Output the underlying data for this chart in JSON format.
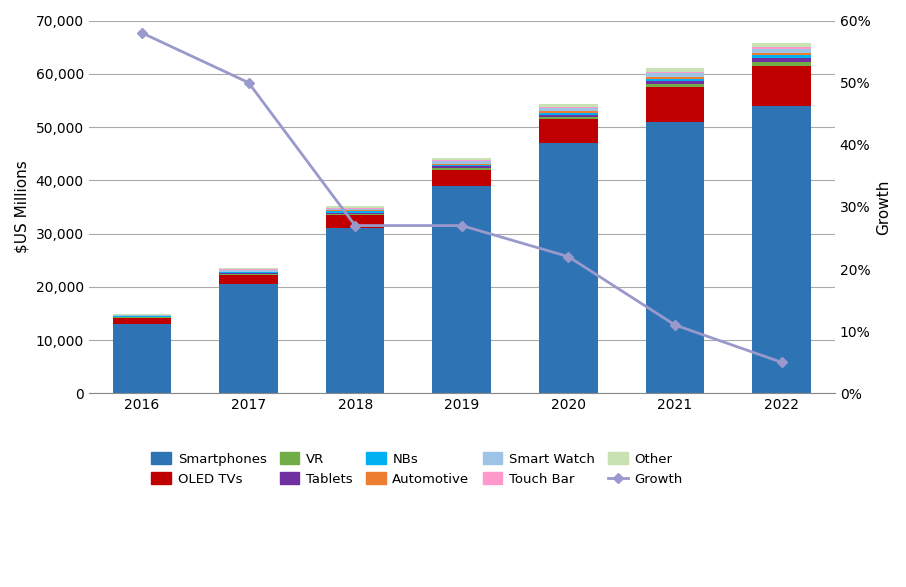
{
  "years": [
    "2016",
    "2017",
    "2018",
    "2019",
    "2020",
    "2021",
    "2022"
  ],
  "smartphones": [
    13000,
    20500,
    31000,
    39000,
    47000,
    51000,
    54000
  ],
  "oled_tvs": [
    1200,
    1800,
    2500,
    3000,
    4500,
    6500,
    7500
  ],
  "vr": [
    80,
    150,
    250,
    350,
    450,
    600,
    750
  ],
  "tablets": [
    80,
    120,
    180,
    250,
    350,
    500,
    650
  ],
  "nbs": [
    100,
    200,
    250,
    300,
    400,
    500,
    600
  ],
  "automotive": [
    60,
    100,
    150,
    200,
    250,
    300,
    400
  ],
  "smart_watch": [
    150,
    250,
    350,
    450,
    550,
    650,
    750
  ],
  "touch_bar": [
    80,
    150,
    200,
    250,
    300,
    350,
    400
  ],
  "other": [
    150,
    230,
    320,
    400,
    500,
    600,
    700
  ],
  "growth_vals": [
    0.58,
    0.5,
    0.27,
    0.27,
    0.22,
    0.11,
    0.05
  ],
  "colors": {
    "smartphones": "#2E74B5",
    "oled_tvs": "#C00000",
    "vr": "#70AD47",
    "tablets": "#7030A0",
    "nbs": "#00B0F0",
    "automotive": "#ED7D31",
    "smart_watch": "#9DC3E6",
    "touch_bar": "#FF99CC",
    "other": "#C9E2B3",
    "growth": "#9999CC"
  },
  "ylim_left": [
    0,
    70000
  ],
  "ylim_right": [
    0,
    0.6
  ],
  "yticks_left": [
    0,
    10000,
    20000,
    30000,
    40000,
    50000,
    60000,
    70000
  ],
  "yticks_right": [
    0.0,
    0.1,
    0.2,
    0.3,
    0.4,
    0.5,
    0.6
  ],
  "ylabel_left": "$US Millions",
  "ylabel_right": "Growth",
  "background_color": "#FFFFFF",
  "bar_width": 0.55
}
